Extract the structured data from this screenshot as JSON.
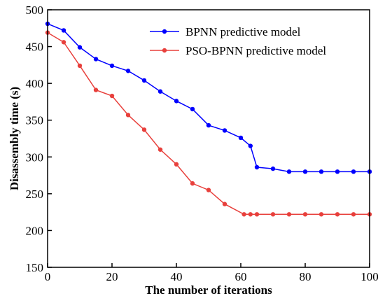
{
  "chart_data": {
    "type": "line",
    "title": "",
    "xlabel": "The number of iterations",
    "ylabel": "Disassembly time (s)",
    "xlim": [
      0,
      100
    ],
    "ylim": [
      150,
      500
    ],
    "x_ticks": [
      0,
      20,
      40,
      60,
      80,
      100
    ],
    "y_ticks": [
      150,
      200,
      250,
      300,
      350,
      400,
      450,
      500
    ],
    "grid": false,
    "legend_position": "top-right",
    "series": [
      {
        "name": "BPNN predictive model",
        "color": "#0000ff",
        "marker": "circle",
        "x": [
          0,
          5,
          10,
          15,
          20,
          25,
          30,
          35,
          40,
          45,
          50,
          55,
          60,
          63,
          65,
          70,
          75,
          80,
          85,
          90,
          95,
          100
        ],
        "y": [
          481,
          472,
          449,
          433,
          424,
          417,
          404,
          389,
          376,
          365,
          343,
          336,
          326,
          315,
          286,
          284,
          280,
          280,
          280,
          280,
          280,
          280
        ]
      },
      {
        "name": "PSO-BPNN predictive model",
        "color": "#e8403c",
        "marker": "circle",
        "x": [
          0,
          5,
          10,
          15,
          20,
          25,
          30,
          35,
          40,
          45,
          50,
          55,
          61,
          63,
          65,
          70,
          75,
          80,
          85,
          90,
          95,
          100
        ],
        "y": [
          469,
          456,
          424,
          391,
          383,
          357,
          337,
          310,
          290,
          264,
          255,
          236,
          222,
          222,
          222,
          222,
          222,
          222,
          222,
          222,
          222,
          222
        ]
      }
    ]
  }
}
